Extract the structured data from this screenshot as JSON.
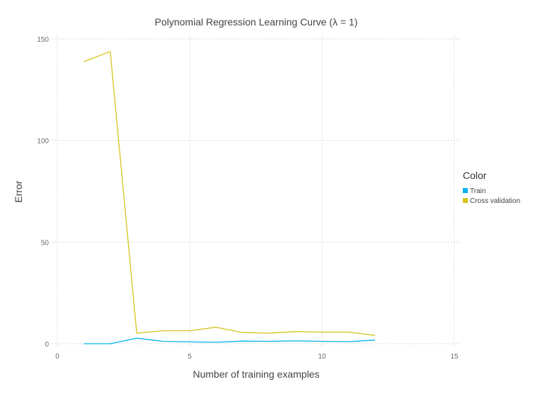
{
  "chart_data": {
    "type": "line",
    "title": "Polynomial Regression Learning Curve (λ = 1)",
    "xlabel": "Number of training examples",
    "ylabel": "Error",
    "xlim": [
      0,
      15
    ],
    "ylim": [
      0,
      150
    ],
    "xticks": [
      "0",
      "5",
      "10",
      "15"
    ],
    "yticks": [
      "0",
      "50",
      "100",
      "150"
    ],
    "grid": true,
    "legend": {
      "title": "Color",
      "placement": "right"
    },
    "series": [
      {
        "name": "Train",
        "color": "#00b2ee",
        "x": [
          1,
          2,
          3,
          4,
          5,
          6,
          7,
          8,
          9,
          10,
          11,
          12
        ],
        "y": [
          0.0,
          0.0,
          2.7,
          1.2,
          0.9,
          0.7,
          1.3,
          1.2,
          1.4,
          1.2,
          1.0,
          1.8
        ]
      },
      {
        "name": "Cross validation",
        "color": "#d4c41a",
        "x": [
          1,
          2,
          3,
          4,
          5,
          6,
          7,
          8,
          9,
          10,
          11,
          12
        ],
        "y": [
          138.8,
          143.8,
          5.2,
          6.4,
          6.4,
          8.1,
          5.5,
          5.2,
          6.0,
          5.7,
          5.7,
          4.1
        ]
      }
    ]
  }
}
